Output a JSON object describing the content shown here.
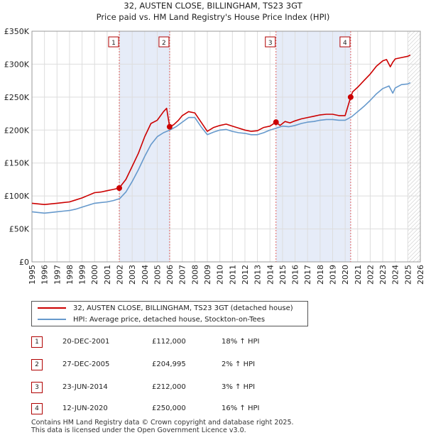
{
  "chart_data": {
    "type": "line",
    "title": "32, AUSTEN CLOSE, BILLINGHAM, TS23 3GT",
    "subtitle": "Price paid vs. HM Land Registry's House Price Index (HPI)",
    "xlabel": "",
    "ylabel": "",
    "xlim": [
      1995,
      2026
    ],
    "ylim": [
      0,
      350000
    ],
    "x_ticks": [
      "1995",
      "1996",
      "1997",
      "1998",
      "1999",
      "2000",
      "2001",
      "2002",
      "2003",
      "2004",
      "2005",
      "2006",
      "2007",
      "2008",
      "2009",
      "2010",
      "2011",
      "2012",
      "2013",
      "2014",
      "2015",
      "2016",
      "2017",
      "2018",
      "2019",
      "2020",
      "2021",
      "2022",
      "2023",
      "2024",
      "2025",
      "2026"
    ],
    "y_ticks": [
      {
        "value": 0,
        "label": "£0"
      },
      {
        "value": 50000,
        "label": "£50K"
      },
      {
        "value": 100000,
        "label": "£100K"
      },
      {
        "value": 150000,
        "label": "£150K"
      },
      {
        "value": 200000,
        "label": "£200K"
      },
      {
        "value": 250000,
        "label": "£250K"
      },
      {
        "value": 300000,
        "label": "£300K"
      },
      {
        "value": 350000,
        "label": "£350K"
      }
    ],
    "grid": true,
    "forecast_start": 2025.0,
    "series": [
      {
        "name": "32, AUSTEN CLOSE, BILLINGHAM, TS23 3GT (detached house)",
        "color": "#cc0000",
        "x": [
          1995,
          1995.5,
          1996,
          1996.5,
          1997,
          1997.5,
          1998,
          1998.5,
          1999,
          1999.5,
          2000,
          2000.5,
          2001,
          2001.5,
          2001.96,
          2002.5,
          2003,
          2003.5,
          2004,
          2004.5,
          2005,
          2005.5,
          2005.75,
          2005.99,
          2006.3,
          2006.7,
          2007,
          2007.5,
          2008,
          2008.5,
          2009,
          2009.5,
          2010,
          2010.5,
          2011,
          2011.5,
          2012,
          2012.5,
          2013,
          2013.5,
          2014,
          2014.48,
          2014.8,
          2015.2,
          2015.6,
          2016,
          2016.5,
          2017,
          2017.5,
          2018,
          2018.5,
          2019,
          2019.5,
          2020,
          2020.44,
          2020.6,
          2021,
          2021.5,
          2022,
          2022.5,
          2023,
          2023.3,
          2023.6,
          2023.8,
          2024,
          2024.5,
          2025,
          2025.2
        ],
        "values": [
          89000,
          88000,
          87000,
          88000,
          89000,
          90000,
          91000,
          94000,
          97000,
          101000,
          105000,
          106000,
          108000,
          110000,
          112000,
          125000,
          145000,
          165000,
          190000,
          210000,
          215000,
          228000,
          233000,
          204995,
          208000,
          215000,
          222000,
          228000,
          226000,
          212000,
          198000,
          204000,
          207000,
          209000,
          206000,
          203000,
          200000,
          198000,
          199000,
          204000,
          206000,
          212000,
          207000,
          213000,
          211000,
          214000,
          217000,
          219000,
          221000,
          223000,
          224000,
          224000,
          222000,
          222000,
          250000,
          258000,
          265000,
          275000,
          285000,
          297000,
          305000,
          307000,
          296000,
          303000,
          308000,
          310000,
          312000,
          314000
        ]
      },
      {
        "name": "HPI: Average price, detached house, Stockton-on-Tees",
        "color": "#6699cc",
        "x": [
          1995,
          1995.5,
          1996,
          1996.5,
          1997,
          1997.5,
          1998,
          1998.5,
          1999,
          1999.5,
          2000,
          2000.5,
          2001,
          2001.5,
          2002,
          2002.5,
          2003,
          2003.5,
          2004,
          2004.5,
          2005,
          2005.5,
          2006,
          2006.5,
          2007,
          2007.5,
          2008,
          2008.5,
          2009,
          2009.5,
          2010,
          2010.5,
          2011,
          2011.5,
          2012,
          2012.5,
          2013,
          2013.5,
          2014,
          2014.5,
          2015,
          2015.5,
          2016,
          2016.5,
          2017,
          2017.5,
          2018,
          2018.5,
          2019,
          2019.5,
          2020,
          2020.5,
          2021,
          2021.5,
          2022,
          2022.5,
          2023,
          2023.5,
          2023.8,
          2024,
          2024.5,
          2025,
          2025.2
        ],
        "values": [
          76000,
          75000,
          74000,
          75000,
          76000,
          77000,
          78000,
          80000,
          83000,
          86000,
          89000,
          90000,
          91000,
          93000,
          96000,
          106000,
          122000,
          140000,
          160000,
          178000,
          190000,
          196000,
          200000,
          205000,
          212000,
          219000,
          219000,
          205000,
          193000,
          197000,
          200000,
          201000,
          198000,
          196000,
          195000,
          193000,
          193000,
          196000,
          200000,
          203000,
          206000,
          205000,
          207000,
          210000,
          212000,
          213000,
          215000,
          216000,
          216000,
          215000,
          215000,
          220000,
          228000,
          236000,
          245000,
          255000,
          263000,
          267000,
          256000,
          264000,
          269000,
          270000,
          272000
        ]
      }
    ],
    "sales": [
      {
        "n": "1",
        "x": 2001.97,
        "value": 112000
      },
      {
        "n": "2",
        "x": 2005.99,
        "value": 204995
      },
      {
        "n": "3",
        "x": 2014.48,
        "value": 212000
      },
      {
        "n": "4",
        "x": 2020.44,
        "value": 250000
      }
    ],
    "shaded_ranges": [
      [
        2001.97,
        2005.99
      ],
      [
        2014.48,
        2020.44
      ]
    ]
  },
  "legend": {
    "items": [
      {
        "label": "32, AUSTEN CLOSE, BILLINGHAM, TS23 3GT (detached house)",
        "color": "#cc0000"
      },
      {
        "label": "HPI: Average price, detached house, Stockton-on-Tees",
        "color": "#6699cc"
      }
    ]
  },
  "sales_table": [
    {
      "n": "1",
      "date": "20-DEC-2001",
      "price": "£112,000",
      "hpi": "18% ↑ HPI"
    },
    {
      "n": "2",
      "date": "27-DEC-2005",
      "price": "£204,995",
      "hpi": "2% ↑ HPI"
    },
    {
      "n": "3",
      "date": "23-JUN-2014",
      "price": "£212,000",
      "hpi": "3% ↑ HPI"
    },
    {
      "n": "4",
      "date": "12-JUN-2020",
      "price": "£250,000",
      "hpi": "16% ↑ HPI"
    }
  ],
  "footer": {
    "line1": "Contains HM Land Registry data © Crown copyright and database right 2025.",
    "line2": "This data is licensed under the Open Government Licence v3.0."
  }
}
